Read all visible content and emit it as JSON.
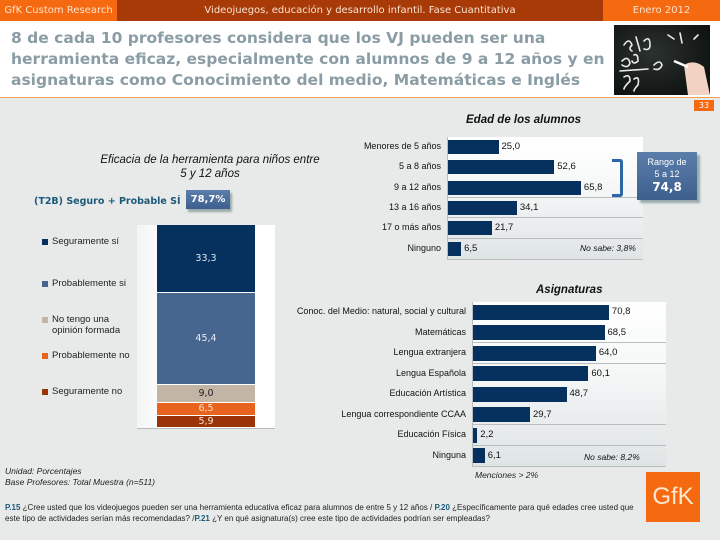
{
  "header": {
    "left": "GfK Custom Research",
    "center": "Videojuegos, educación y desarrollo infantil. Fase Cuantitativa",
    "right": "Enero 2012"
  },
  "title": "8 de cada 10 profesores considera que los VJ pueden ser una herramienta eficaz, especialmente con alumnos de 9 a 12 años y en asignaturas como Conocimiento del medio, Matemáticas e Inglés",
  "page_number": "33",
  "colors": {
    "brand_orange": "#f56a10",
    "header_dark": "#a83a08",
    "bar_navy": "#06305e"
  },
  "chart_data": [
    {
      "type": "bar",
      "stacked": true,
      "title": "Eficacia de la herramienta para niños entre 5 y 12 años",
      "t2b_label": "(T2B) Seguro + Probable SÍ",
      "t2b_value": "78,7%",
      "series": [
        {
          "name": "Seguramente sí",
          "value": 33.3,
          "label": "33,3",
          "color": "#06305e",
          "text_color": "#dde6f0"
        },
        {
          "name": "Probablemente si",
          "value": 45.4,
          "label": "45,4",
          "color": "#46668f",
          "text_color": "#e6ecf3"
        },
        {
          "name": "No tengo una opinión formada",
          "value": 9.0,
          "label": "9,0",
          "color": "#c2b5a6",
          "text_color": "#222222"
        },
        {
          "name": "Probablemente no",
          "value": 6.5,
          "label": "6,5",
          "color": "#e8641e",
          "text_color": "#fde0c8"
        },
        {
          "name": "Seguramente no",
          "value": 5.9,
          "label": "5,9",
          "color": "#9a3408",
          "text_color": "#fde0c8"
        }
      ],
      "ylim": [
        0,
        100
      ]
    },
    {
      "type": "bar",
      "orientation": "horizontal",
      "title": "Edad de los alumnos",
      "categories": [
        "Menores de 5 años",
        "5 a 8 años",
        "9 a 12 años",
        "13 a 16 años",
        "17 o más años",
        "Ninguno"
      ],
      "values": [
        25.0,
        52.6,
        65.8,
        34.1,
        21.7,
        6.5
      ],
      "labels": [
        "25,0",
        "52,6",
        "65,8",
        "34,1",
        "21,7",
        "6,5"
      ],
      "no_sabe": "No sabe: 3,8%",
      "callout": {
        "line1": "Rango de",
        "line2": "5 a 12",
        "value": "74,8"
      },
      "xlim": [
        0,
        100
      ]
    },
    {
      "type": "bar",
      "orientation": "horizontal",
      "title": "Asignaturas",
      "categories": [
        "Conoc. del Medio: natural, social y cultural",
        "Matemáticas",
        "Lengua extranjera",
        "Lengua Española",
        "Educación Artística",
        "Lengua correspondiente CCAA",
        "Educación Física",
        "Ninguna"
      ],
      "values": [
        70.8,
        68.5,
        64.0,
        60.1,
        48.7,
        29.7,
        2.2,
        6.1
      ],
      "labels": [
        "70,8",
        "68,5",
        "64,0",
        "60,1",
        "48,7",
        "29,7",
        "2,2",
        "6,1"
      ],
      "no_sabe": "No sabe: 8,2%",
      "note": "Menciones > 2%",
      "xlim": [
        0,
        100
      ]
    }
  ],
  "notes": {
    "unit": "Unidad: Porcentajes",
    "base": "Base Profesores: Total Muestra (n=511)"
  },
  "footnote": {
    "q1_id": "P.15",
    "q1": " ¿Cree usted que los videojuegos pueden ser una herramienta educativa eficaz para alumnos de entre 5 y 12 años / ",
    "q2_id": "P.20",
    "q2": " ¿Específicamente para qué edades cree usted que este tipo de actividades serían más recomendadas? /",
    "q3_id": "P.21",
    "q3": " ¿Y en qué asignatura(s) cree este tipo de actividades podrían ser empleadas?"
  },
  "logo": "GfK"
}
